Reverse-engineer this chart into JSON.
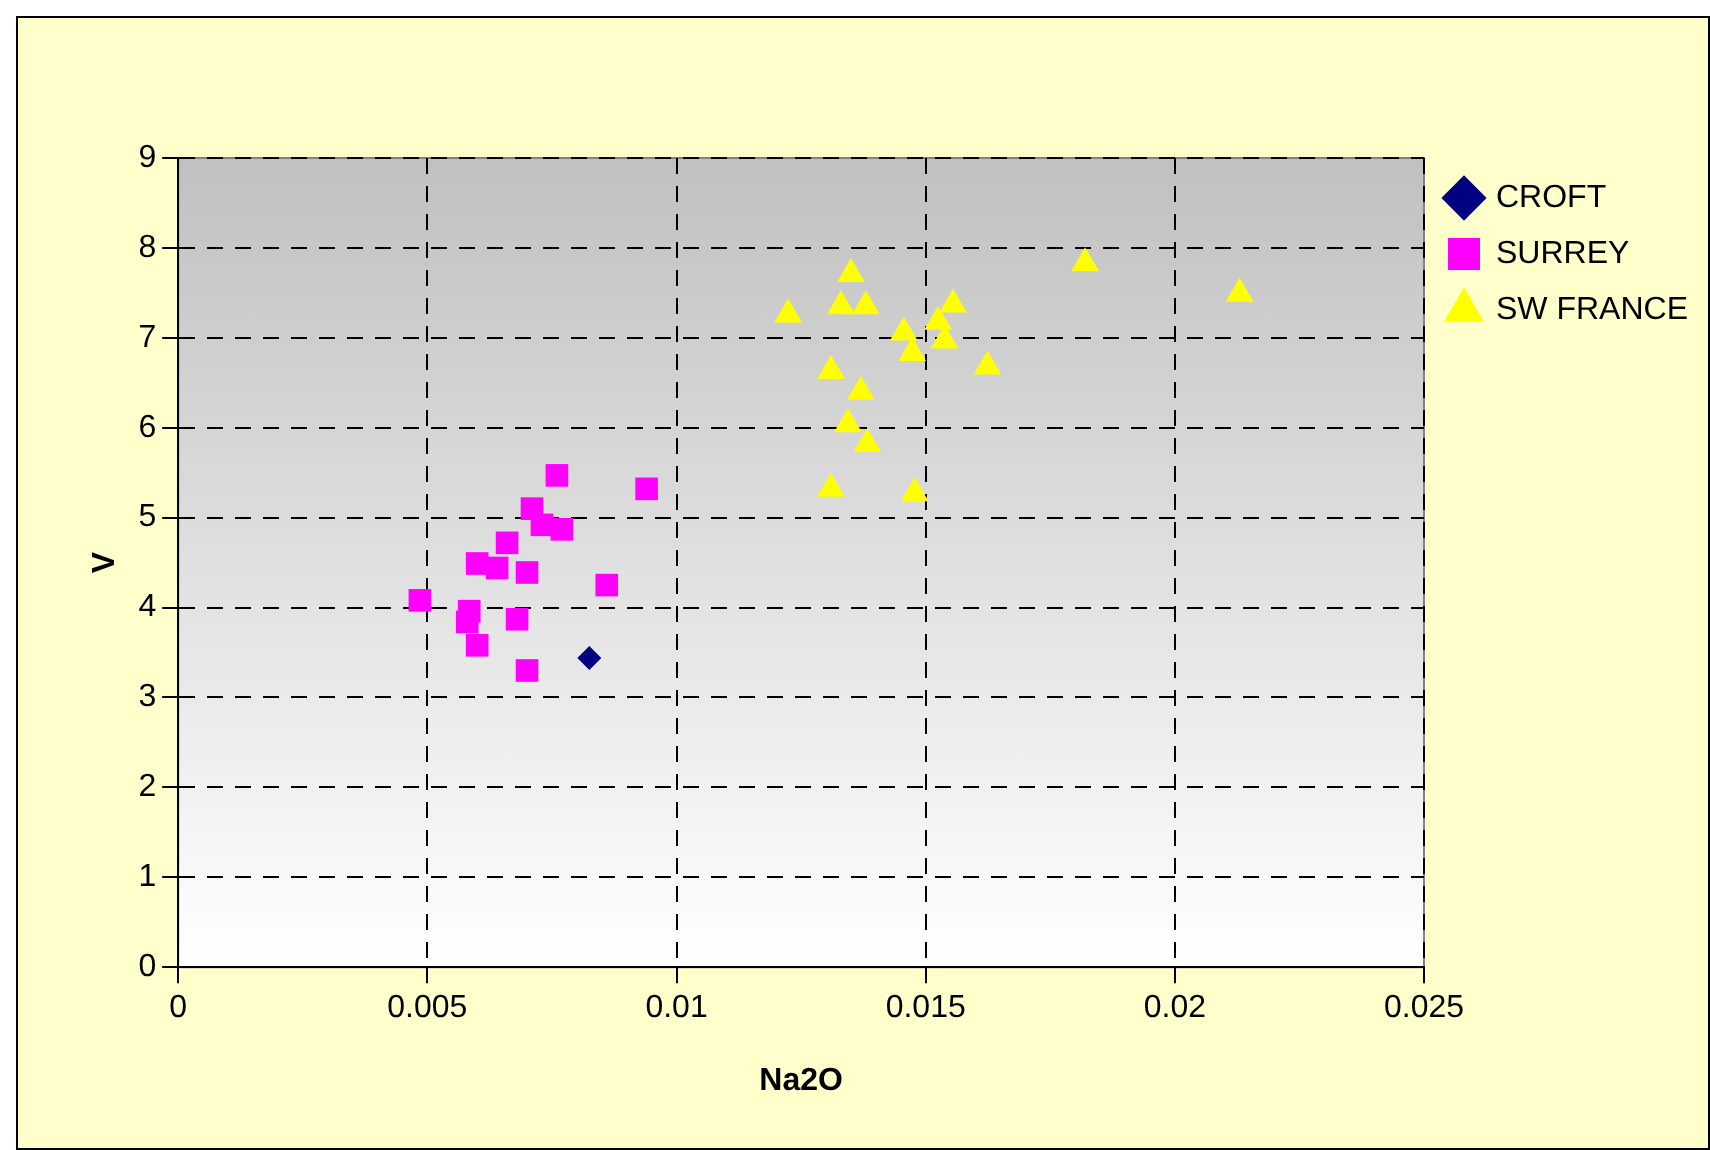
{
  "chart_data": {
    "type": "scatter",
    "xlabel": "Na2O",
    "ylabel": "V",
    "xlim": [
      0,
      0.025
    ],
    "xticks": [
      0,
      0.005,
      0.01,
      0.015,
      0.02,
      0.025
    ],
    "ylim": [
      0,
      9
    ],
    "yticks": [
      0,
      1,
      2,
      3,
      4,
      5,
      6,
      7,
      8,
      9
    ],
    "grid": true,
    "legend": "top right",
    "series": [
      {
        "name": "CROFT",
        "color": "#000080",
        "marker": "diamond",
        "x": [
          0.00825
        ],
        "values": [
          3.44
        ]
      },
      {
        "name": "SURREY",
        "color": "#ff00ff",
        "marker": "square",
        "x": [
          0.00485,
          0.00584,
          0.0058,
          0.006,
          0.006,
          0.0066,
          0.0071,
          0.0076,
          0.0077,
          0.0073,
          0.007,
          0.0064,
          0.0068,
          0.007,
          0.0086,
          0.0094
        ],
        "values": [
          4.08,
          3.96,
          3.84,
          3.58,
          4.49,
          4.72,
          5.1,
          5.47,
          4.87,
          4.92,
          4.39,
          4.44,
          3.87,
          3.3,
          4.25,
          5.32
        ]
      },
      {
        "name": "SW FRANCE",
        "color": "#ffff00",
        "marker": "triangle",
        "x": [
          0.0135,
          0.01224,
          0.0133,
          0.0138,
          0.01555,
          0.0182,
          0.0213,
          0.01456,
          0.01525,
          0.01473,
          0.01538,
          0.01624,
          0.0131,
          0.0137,
          0.01344,
          0.01383,
          0.0131,
          0.01478
        ],
        "values": [
          7.71,
          7.26,
          7.35,
          7.35,
          7.37,
          7.83,
          7.49,
          7.06,
          7.18,
          6.83,
          6.97,
          6.68,
          6.63,
          6.4,
          6.04,
          5.82,
          5.32,
          5.27
        ]
      }
    ]
  }
}
